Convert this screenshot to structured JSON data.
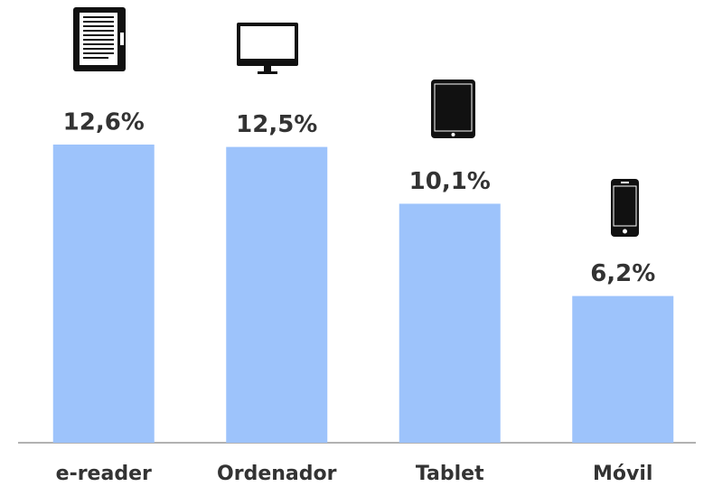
{
  "chart_data": {
    "type": "bar",
    "categories": [
      "e-reader",
      "Ordenador",
      "Tablet",
      "Móvil"
    ],
    "values": [
      12.6,
      12.5,
      10.1,
      6.2
    ],
    "value_labels": [
      "12,6%",
      "12,5%",
      "10,1%",
      "6,2%"
    ],
    "color": "#9dc3fb"
  }
}
